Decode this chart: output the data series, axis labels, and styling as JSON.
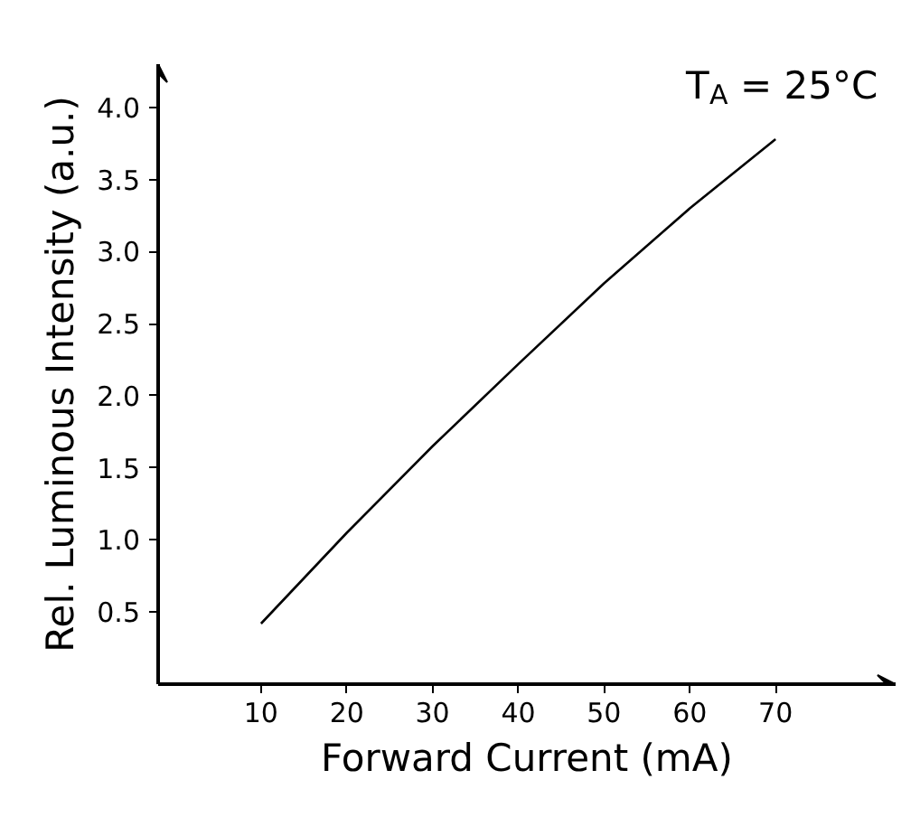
{
  "chart_data": {
    "type": "line",
    "xlabel": "Forward Current (mA)",
    "ylabel": "Rel. Luminous Intensity (a.u.)",
    "x": [
      10,
      20,
      30,
      40,
      50,
      60,
      70
    ],
    "series": [
      {
        "color": "#000000",
        "values": [
          0.42,
          1.05,
          1.65,
          2.22,
          2.78,
          3.3,
          3.78
        ]
      }
    ],
    "xlim": [
      -2,
      84
    ],
    "ylim": [
      0,
      4.3
    ],
    "xticks": [
      10,
      20,
      30,
      40,
      50,
      60,
      70
    ],
    "yticks": [
      {
        "value": 0.5,
        "label": "0.5"
      },
      {
        "value": 1.0,
        "label": "1.0"
      },
      {
        "value": 1.5,
        "label": "1.5"
      },
      {
        "value": 2.0,
        "label": "2.0"
      },
      {
        "value": 2.5,
        "label": "2.5"
      },
      {
        "value": 3.0,
        "label": "3.0"
      },
      {
        "value": 3.5,
        "label": "3.5"
      },
      {
        "value": 4.0,
        "label": "4.0"
      }
    ],
    "annotations": [
      "T$_{A}$ = 25°C"
    ],
    "grid": false,
    "marker": "none",
    "line_style": "solid"
  }
}
